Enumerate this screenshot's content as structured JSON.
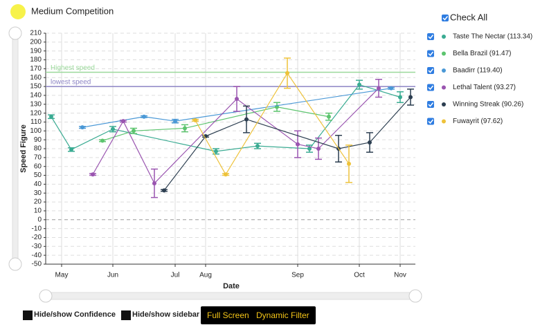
{
  "chart_data": {
    "type": "line",
    "title": "Medium Competition",
    "x_label": "Date",
    "y_label": "Speed Figure",
    "xlim": [
      0,
      534
    ],
    "xticks": [
      {
        "value": 23,
        "label": "May"
      },
      {
        "value": 97,
        "label": "Jun"
      },
      {
        "value": 187,
        "label": "Jul"
      },
      {
        "value": 231,
        "label": "Aug"
      },
      {
        "value": 364,
        "label": "Sep"
      },
      {
        "value": 453,
        "label": "Oct"
      },
      {
        "value": 512,
        "label": "Nov"
      }
    ],
    "ylim": [
      -50,
      210
    ],
    "yticks": [
      -50,
      -40,
      -30,
      -20,
      -10,
      0,
      10,
      20,
      30,
      40,
      50,
      60,
      70,
      80,
      90,
      100,
      110,
      120,
      130,
      140,
      150,
      160,
      170,
      180,
      190,
      200,
      210
    ],
    "grid": true,
    "reference_lines": [
      {
        "label": "Highest speed",
        "value": 166,
        "color": "#9ad89a"
      },
      {
        "label": "lowest speed",
        "value": 150,
        "color": "#8c84c4"
      }
    ],
    "series": [
      {
        "name": "Taste The Nectar (113.34)",
        "color": "#3aab92",
        "x": [
          8,
          37,
          97,
          246,
          306,
          381,
          453,
          512
        ],
        "values": [
          116,
          79,
          102,
          77,
          83,
          80,
          152,
          138
        ],
        "errors": [
          2,
          2,
          3,
          3,
          3,
          4,
          5,
          6
        ]
      },
      {
        "name": "Bella Brazil (91.47)",
        "color": "#5cc46e",
        "x": [
          82,
          127,
          201,
          334,
          409
        ],
        "values": [
          89,
          100,
          103,
          127,
          116
        ],
        "errors": [
          1,
          3,
          4,
          5,
          4
        ]
      },
      {
        "name": "Baadirr (119.40)",
        "color": "#4a98d6",
        "x": [
          53,
          142,
          187,
          499
        ],
        "values": [
          104,
          116,
          111,
          148
        ],
        "errors": [
          1,
          1,
          2,
          1
        ]
      },
      {
        "name": "Lethal Talent (93.27)",
        "color": "#9a55b0",
        "x": [
          68,
          112,
          157,
          276,
          364,
          394,
          481
        ],
        "values": [
          51,
          111,
          41,
          136,
          85,
          80,
          148
        ],
        "errors": [
          1,
          1,
          16,
          14,
          15,
          12,
          10
        ]
      },
      {
        "name": "Winning Streak (90.26)",
        "color": "#2c3e50",
        "x": [
          171,
          231,
          290,
          423,
          468,
          527
        ],
        "values": [
          33,
          94,
          113,
          80,
          87,
          138
        ],
        "errors": [
          1,
          1,
          15,
          15,
          11,
          9
        ]
      },
      {
        "name": "Fuwayrit (97.62)",
        "color": "#eec23a",
        "x": [
          216,
          260,
          349,
          438
        ],
        "values": [
          112,
          51,
          165,
          63
        ],
        "errors": [
          1,
          1,
          17,
          21
        ]
      }
    ]
  },
  "controls": {
    "check_all": "Check All",
    "toggle_confidence": "Hide/show Confidence",
    "toggle_sidebar": "Hide/show sidebar",
    "full_screen": "Full Screen",
    "dynamic_filter": "Dynamic Filter"
  }
}
